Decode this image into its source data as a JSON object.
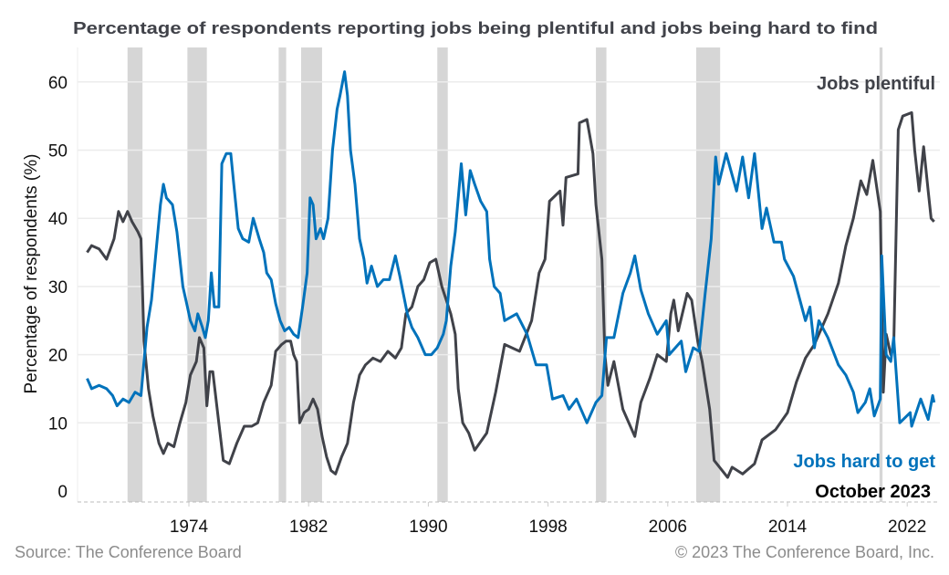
{
  "chart_data": {
    "type": "line",
    "title": "Percentage of respondents reporting jobs being plentiful and jobs being hard to find",
    "xlabel": "",
    "ylabel": "Percentage of respondents (%)",
    "xlim": [
      1967.0,
      2024.0
    ],
    "ylim": [
      -1.5,
      64
    ],
    "x_ticks": [
      1974,
      1982,
      1990,
      1998,
      2006,
      2014,
      2022
    ],
    "y_ticks": [
      0,
      10,
      20,
      30,
      40,
      50,
      60
    ],
    "grid": "horizontal",
    "annotation": "October 2023",
    "recession_shading_color": "#d6d6d6",
    "recessions": [
      [
        1969.9,
        1970.9
      ],
      [
        1973.9,
        1975.2
      ],
      [
        1980.0,
        1980.5
      ],
      [
        1981.5,
        1982.9
      ],
      [
        1990.6,
        1991.3
      ],
      [
        2001.2,
        2001.9
      ],
      [
        2007.9,
        2009.5
      ],
      [
        2020.15,
        2020.35
      ]
    ],
    "series": [
      {
        "name": "Jobs plentiful",
        "color": "#404249",
        "x": [
          1967.2,
          1967.5,
          1968.0,
          1968.5,
          1969.0,
          1969.3,
          1969.6,
          1969.9,
          1970.2,
          1970.6,
          1970.8,
          1971.0,
          1971.3,
          1971.6,
          1972.0,
          1972.3,
          1972.6,
          1973.0,
          1973.4,
          1973.8,
          1974.1,
          1974.5,
          1974.7,
          1975.0,
          1975.2,
          1975.4,
          1975.6,
          1976.0,
          1976.3,
          1976.7,
          1977.2,
          1977.7,
          1978.2,
          1978.6,
          1979.0,
          1979.5,
          1979.8,
          1980.2,
          1980.5,
          1980.8,
          1981.0,
          1981.2,
          1981.4,
          1981.7,
          1982.0,
          1982.3,
          1982.6,
          1982.9,
          1983.2,
          1983.5,
          1983.8,
          1984.2,
          1984.6,
          1985.0,
          1985.4,
          1985.8,
          1986.3,
          1986.8,
          1987.3,
          1987.8,
          1988.2,
          1988.5,
          1988.9,
          1989.3,
          1989.7,
          1990.1,
          1990.5,
          1990.9,
          1991.2,
          1991.5,
          1991.8,
          1992.0,
          1992.3,
          1992.7,
          1993.1,
          1993.9,
          1994.5,
          1995.1,
          1996.1,
          1996.9,
          1997.4,
          1997.8,
          1998.1,
          1998.8,
          1999.0,
          1999.2,
          2000.0,
          2000.1,
          2000.6,
          2001.0,
          2001.2,
          2001.6,
          2001.8,
          2002.0,
          2002.4,
          2003.0,
          2003.8,
          2004.2,
          2004.8,
          2005.3,
          2005.9,
          2006.2,
          2006.4,
          2006.7,
          2007.3,
          2007.6,
          2008.0,
          2008.3,
          2008.8,
          2009.1,
          2010.0,
          2010.3,
          2011.0,
          2011.8,
          2012.3,
          2013.2,
          2014.0,
          2014.6,
          2015.2,
          2015.8,
          2016.7,
          2017.4,
          2017.9,
          2018.4,
          2018.9,
          2019.3,
          2019.7,
          2020.0,
          2020.2,
          2020.4,
          2020.6,
          2020.9,
          2021.1,
          2021.4,
          2021.7,
          2022.3,
          2022.5,
          2022.8,
          2023.1,
          2023.4,
          2023.6,
          2023.8
        ],
        "values": [
          35,
          36,
          35.5,
          34,
          37,
          41,
          39.5,
          41,
          39.5,
          38,
          37,
          22,
          15,
          11,
          7,
          5.5,
          7,
          6.5,
          10,
          13,
          17,
          19,
          22.5,
          21,
          12.5,
          17.5,
          17.5,
          10,
          4.5,
          4,
          7,
          9.5,
          9.5,
          10,
          13,
          15.5,
          20.5,
          21.5,
          22,
          22,
          20,
          19,
          10,
          11.5,
          12,
          13.5,
          12,
          8,
          5,
          3,
          2.5,
          5,
          7,
          13,
          17,
          18.5,
          19.5,
          19,
          20.5,
          19.5,
          21,
          26,
          27,
          30,
          31,
          33.5,
          34,
          30,
          28,
          26,
          23,
          15,
          10,
          8.5,
          6,
          8.5,
          14.5,
          21.5,
          20.5,
          25,
          32,
          34,
          42.5,
          44,
          39,
          46,
          46.5,
          54,
          54.5,
          49.5,
          42,
          34,
          20,
          15.5,
          19,
          12,
          8,
          13,
          16.5,
          20,
          19,
          26,
          28,
          23.5,
          29,
          28,
          22,
          19,
          12,
          4.5,
          2,
          3.5,
          2.5,
          4,
          7.5,
          9,
          11.5,
          16,
          19.5,
          21.5,
          26,
          30.5,
          36,
          40,
          45.5,
          43.5,
          48.5,
          44,
          41,
          14.5,
          23,
          20,
          21,
          53,
          55,
          55.5,
          50,
          44,
          50.5,
          44,
          40,
          39.5
        ]
      },
      {
        "name": "Jobs hard to get",
        "color": "#0072bb",
        "x": [
          1967.2,
          1967.5,
          1968.0,
          1968.5,
          1968.9,
          1969.2,
          1969.6,
          1970.0,
          1970.4,
          1970.8,
          1971.2,
          1971.5,
          1971.8,
          1972.1,
          1972.3,
          1972.5,
          1972.9,
          1973.2,
          1973.6,
          1973.9,
          1974.1,
          1974.4,
          1974.6,
          1974.9,
          1975.1,
          1975.3,
          1975.5,
          1975.7,
          1976.0,
          1976.2,
          1976.5,
          1976.8,
          1977.0,
          1977.3,
          1977.6,
          1978.0,
          1978.3,
          1978.7,
          1979.0,
          1979.2,
          1979.5,
          1979.8,
          1980.1,
          1980.4,
          1980.7,
          1981.0,
          1981.3,
          1981.6,
          1981.9,
          1982.1,
          1982.3,
          1982.5,
          1982.8,
          1983.0,
          1983.3,
          1983.6,
          1983.9,
          1984.1,
          1984.4,
          1984.6,
          1984.8,
          1985.1,
          1985.4,
          1985.7,
          1985.9,
          1986.2,
          1986.6,
          1987.0,
          1987.4,
          1987.8,
          1988.1,
          1988.6,
          1988.9,
          1989.3,
          1989.8,
          1990.2,
          1990.6,
          1991.0,
          1991.2,
          1991.5,
          1991.8,
          1992.2,
          1992.5,
          1992.8,
          1993.1,
          1993.5,
          1993.9,
          1994.1,
          1994.4,
          1994.8,
          1995.1,
          1995.9,
          1996.6,
          1997.2,
          1997.9,
          1998.3,
          1999.0,
          1999.4,
          1999.9,
          2000.6,
          2001.2,
          2001.6,
          2001.9,
          2002.4,
          2003.0,
          2003.5,
          2003.8,
          2004.2,
          2004.7,
          2005.3,
          2005.9,
          2006.1,
          2006.9,
          2007.2,
          2007.7,
          2008.1,
          2008.5,
          2008.9,
          2009.2,
          2009.4,
          2009.9,
          2010.6,
          2011.0,
          2011.4,
          2011.8,
          2012.3,
          2012.6,
          2013.1,
          2013.6,
          2013.8,
          2014.4,
          2015.2,
          2015.5,
          2015.8,
          2016.1,
          2016.7,
          2017.4,
          2017.9,
          2018.4,
          2018.7,
          2019.2,
          2019.5,
          2019.8,
          2020.2,
          2020.3,
          2020.6,
          2020.9,
          2021.1,
          2021.5,
          2022.2,
          2022.3,
          2022.9,
          2023.4,
          2023.7,
          2023.8
        ],
        "values": [
          16.5,
          15,
          15.5,
          15,
          14,
          12.5,
          13.5,
          13,
          14.5,
          14,
          24,
          28,
          35,
          42,
          45,
          43,
          42,
          38,
          30,
          27,
          25,
          23.5,
          26,
          24,
          22.5,
          25,
          32,
          27,
          27,
          48,
          49.5,
          49.5,
          45,
          38.5,
          37,
          36.5,
          40,
          37,
          35,
          32,
          31,
          27.5,
          25,
          23.5,
          24,
          23,
          22.5,
          27,
          32,
          43,
          42,
          37,
          38.5,
          37,
          40,
          50,
          56,
          58,
          61.5,
          58,
          50,
          45,
          37,
          34,
          30.5,
          33,
          30,
          31,
          31,
          34.5,
          31.5,
          26,
          24,
          22.5,
          20,
          20,
          21,
          23,
          25,
          33,
          38,
          48,
          40.5,
          47,
          45,
          42.5,
          41,
          34,
          30,
          29,
          25,
          26,
          23,
          18.5,
          18.5,
          13.5,
          14,
          12,
          13.5,
          10,
          13,
          14,
          22.5,
          22.5,
          29,
          32,
          34.5,
          29.5,
          26,
          23,
          25,
          20,
          22,
          17.5,
          21,
          20.5,
          29,
          37,
          49,
          45,
          49.5,
          44,
          49,
          43,
          49.5,
          38.5,
          41.5,
          36.5,
          36.5,
          34,
          31.5,
          25,
          27,
          21,
          25,
          22.5,
          18.5,
          17,
          14.5,
          11.5,
          13,
          15,
          11,
          13.5,
          34.5,
          20,
          19,
          22.5,
          10,
          11.5,
          9.5,
          13.5,
          10.5,
          14,
          13
        ]
      }
    ]
  },
  "footer": {
    "source": "Source: The Conference Board",
    "copyright": "© 2023 The Conference Board, Inc."
  }
}
